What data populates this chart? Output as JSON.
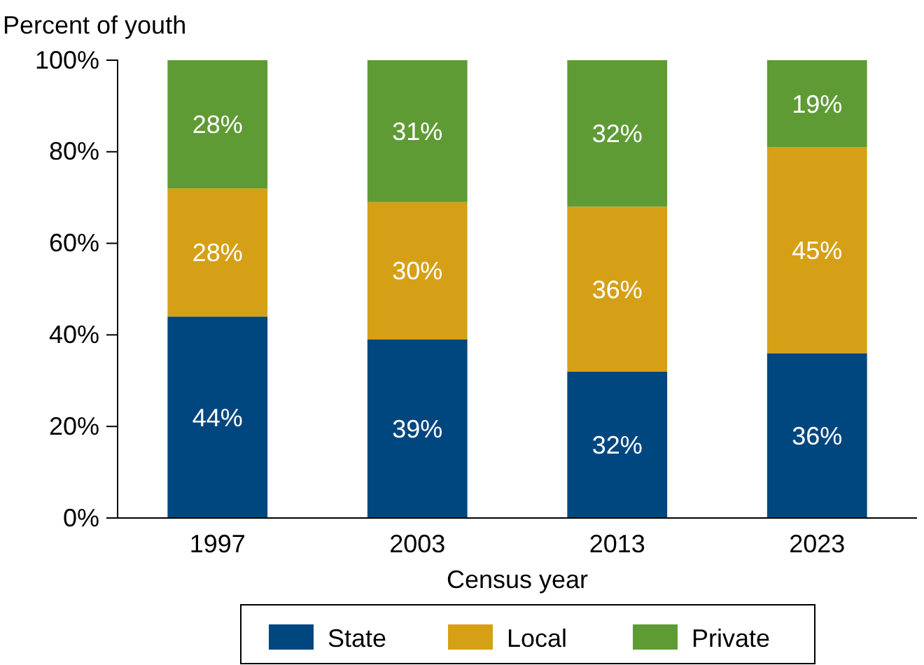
{
  "chart_data": {
    "type": "bar",
    "stacked": true,
    "ylabel": "Percent of youth",
    "xlabel": "Census year",
    "categories": [
      "1997",
      "2003",
      "2013",
      "2023"
    ],
    "series": [
      {
        "name": "State",
        "color": "#00467f",
        "values": [
          44,
          39,
          32,
          36
        ],
        "value_labels": [
          "44%",
          "39%",
          "32%",
          "36%"
        ]
      },
      {
        "name": "Local",
        "color": "#d6a016",
        "values": [
          28,
          30,
          36,
          45
        ],
        "value_labels": [
          "28%",
          "30%",
          "36%",
          "45%"
        ]
      },
      {
        "name": "Private",
        "color": "#5f9b35",
        "values": [
          28,
          31,
          32,
          19
        ],
        "value_labels": [
          "28%",
          "31%",
          "32%",
          "19%"
        ]
      }
    ],
    "ylim": [
      0,
      100
    ],
    "yticks": [
      {
        "value": 0,
        "label": "0%"
      },
      {
        "value": 20,
        "label": "20%"
      },
      {
        "value": 40,
        "label": "40%"
      },
      {
        "value": 60,
        "label": "60%"
      },
      {
        "value": 80,
        "label": "80%"
      },
      {
        "value": 100,
        "label": "100%"
      }
    ],
    "grid": false,
    "legend": "bottom"
  }
}
